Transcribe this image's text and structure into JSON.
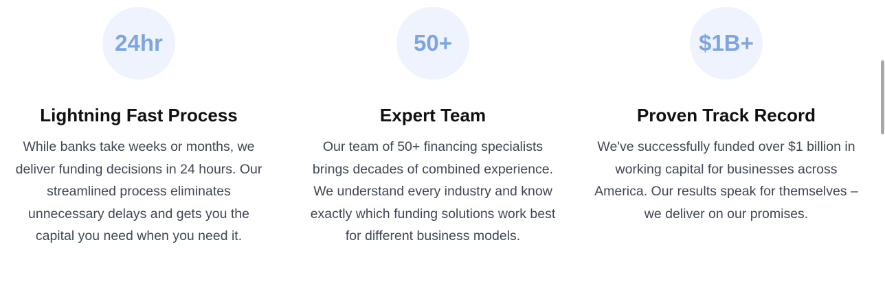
{
  "features": [
    {
      "stat": "24hr",
      "title": "Lightning Fast Process",
      "description": "While banks take weeks or months, we deliver funding decisions in 24 hours. Our streamlined process eliminates unnecessary delays and gets you the capital you need when you need it."
    },
    {
      "stat": "50+",
      "title": "Expert Team",
      "description": "Our team of 50+ financing specialists brings decades of combined experience. We understand every industry and know exactly which funding solutions work best for different business models."
    },
    {
      "stat": "$1B+",
      "title": "Proven Track Record",
      "description": "We've successfully funded over $1 billion in working capital for businesses across America. Our results speak for themselves – we deliver on our promises."
    }
  ],
  "colors": {
    "badge_bg": "#eef3fd",
    "badge_text": "#7ea5e0",
    "title": "#111111",
    "body_text": "#3f4654"
  }
}
